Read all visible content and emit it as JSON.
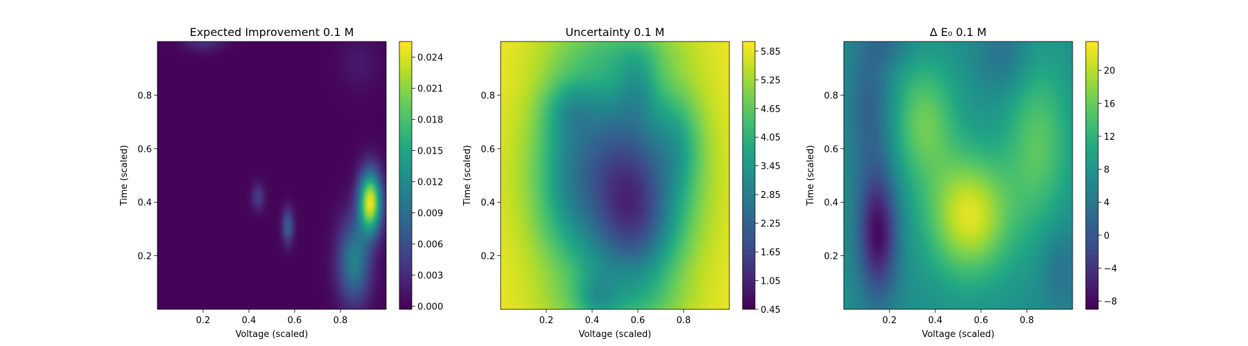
{
  "chart_data": [
    {
      "type": "heatmap",
      "title": "Expected Improvement 0.1 M",
      "xlabel": "Voltage (scaled)",
      "ylabel": "Time (scaled)",
      "xlim": [
        0.0,
        1.0
      ],
      "ylim": [
        0.0,
        1.0
      ],
      "x_ticks": [
        "0.2",
        "0.4",
        "0.6",
        "0.8"
      ],
      "y_ticks": [
        "0.2",
        "0.4",
        "0.6",
        "0.8"
      ],
      "colorbar": {
        "min": -0.0003,
        "max": 0.0255,
        "ticks": [
          "0.000",
          "0.003",
          "0.006",
          "0.009",
          "0.012",
          "0.015",
          "0.018",
          "0.021",
          "0.024"
        ]
      },
      "colormap": "viridis",
      "field": {
        "base": 0.0,
        "bumps": [
          {
            "x": 0.93,
            "y": 0.4,
            "sx": 0.035,
            "sy": 0.08,
            "amp": 0.0245
          },
          {
            "x": 0.86,
            "y": 0.18,
            "sx": 0.05,
            "sy": 0.11,
            "amp": 0.011
          },
          {
            "x": 0.57,
            "y": 0.31,
            "sx": 0.018,
            "sy": 0.045,
            "amp": 0.0075
          },
          {
            "x": 0.44,
            "y": 0.42,
            "sx": 0.02,
            "sy": 0.035,
            "amp": 0.0045
          },
          {
            "x": 0.2,
            "y": 1.0,
            "sx": 0.06,
            "sy": 0.025,
            "amp": 0.0035
          },
          {
            "x": 0.88,
            "y": 0.92,
            "sx": 0.06,
            "sy": 0.07,
            "amp": 0.0015
          }
        ]
      }
    },
    {
      "type": "heatmap",
      "title": "Uncertainty 0.1 M",
      "xlabel": "Voltage (scaled)",
      "ylabel": "Time (scaled)",
      "xlim": [
        0.0,
        1.0
      ],
      "ylim": [
        0.0,
        1.0
      ],
      "x_ticks": [
        "0.2",
        "0.4",
        "0.6",
        "0.8"
      ],
      "y_ticks": [
        "0.2",
        "0.4",
        "0.6",
        "0.8"
      ],
      "colorbar": {
        "min": 0.45,
        "max": 6.05,
        "ticks": [
          "0.45",
          "1.05",
          "1.65",
          "2.25",
          "2.85",
          "3.45",
          "4.05",
          "4.65",
          "5.25",
          "5.85"
        ]
      },
      "colormap": "viridis",
      "field": {
        "base": 6.0,
        "bumps": [
          {
            "x": 0.5,
            "y": 0.5,
            "sx": 0.22,
            "sy": 0.3,
            "amp": -4.0
          },
          {
            "x": 0.6,
            "y": 0.32,
            "sx": 0.12,
            "sy": 0.18,
            "amp": -1.6
          },
          {
            "x": 0.78,
            "y": 0.62,
            "sx": 0.07,
            "sy": 0.12,
            "amp": -0.8
          },
          {
            "x": 0.3,
            "y": 0.75,
            "sx": 0.08,
            "sy": 0.08,
            "amp": -0.8
          },
          {
            "x": 0.6,
            "y": 0.85,
            "sx": 0.06,
            "sy": 0.1,
            "amp": -0.8
          },
          {
            "x": 0.42,
            "y": 0.04,
            "sx": 0.06,
            "sy": 0.08,
            "amp": -0.9
          },
          {
            "x": 0.28,
            "y": 0.5,
            "sx": 0.08,
            "sy": 0.2,
            "amp": -0.5
          },
          {
            "x": 0.5,
            "y": 0.03,
            "sx": 0.22,
            "sy": 0.06,
            "amp": -0.6
          },
          {
            "x": 0.5,
            "y": 0.97,
            "sx": 0.22,
            "sy": 0.06,
            "amp": -0.5
          }
        ]
      }
    },
    {
      "type": "heatmap",
      "title": "Δ E₀ 0.1 M",
      "xlabel": "Voltage (scaled)",
      "ylabel": "Time (scaled)",
      "xlim": [
        0.0,
        1.0
      ],
      "ylim": [
        0.0,
        1.0
      ],
      "x_ticks": [
        "0.2",
        "0.4",
        "0.6",
        "0.8"
      ],
      "y_ticks": [
        "0.2",
        "0.4",
        "0.6",
        "0.8"
      ],
      "colorbar": {
        "min": -9,
        "max": 23.5,
        "ticks": [
          "−8",
          "−4",
          "0",
          "4",
          "8",
          "12",
          "16",
          "20"
        ]
      },
      "colormap": "viridis",
      "field": {
        "base": 7.0,
        "bumps": [
          {
            "x": 0.55,
            "y": 0.35,
            "sx": 0.13,
            "sy": 0.16,
            "amp": 15.0
          },
          {
            "x": 0.35,
            "y": 0.7,
            "sx": 0.1,
            "sy": 0.16,
            "amp": 9.0
          },
          {
            "x": 0.85,
            "y": 0.62,
            "sx": 0.1,
            "sy": 0.22,
            "amp": 8.0
          },
          {
            "x": 0.15,
            "y": 0.28,
            "sx": 0.06,
            "sy": 0.16,
            "amp": -15.0
          },
          {
            "x": 0.12,
            "y": 0.75,
            "sx": 0.07,
            "sy": 0.2,
            "amp": -6.0
          },
          {
            "x": 0.7,
            "y": 0.95,
            "sx": 0.08,
            "sy": 0.1,
            "amp": -4.0
          },
          {
            "x": 0.95,
            "y": 0.15,
            "sx": 0.06,
            "sy": 0.12,
            "amp": -4.0
          },
          {
            "x": 0.2,
            "y": 0.98,
            "sx": 0.08,
            "sy": 0.05,
            "amp": -3.0
          }
        ]
      }
    }
  ]
}
